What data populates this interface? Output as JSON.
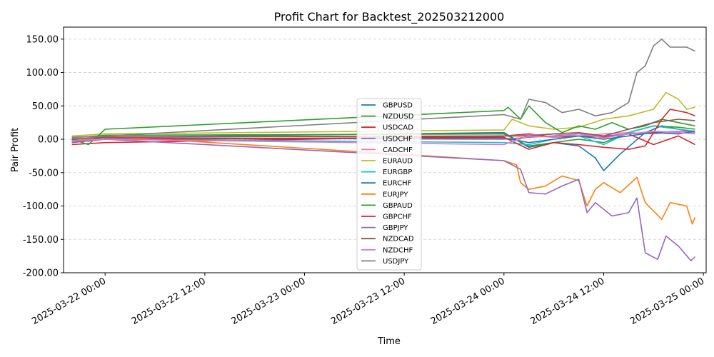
{
  "chart_data": {
    "type": "line",
    "title": "Profit Chart for Backtest_202503212000",
    "xlabel": "Time",
    "ylabel": "Pair Profit",
    "grid": "y-dashed",
    "legend_position": "center",
    "x_axis": {
      "type": "datetime",
      "range": [
        "2025-03-21T19:00",
        "2025-03-25T00:20"
      ],
      "ticks": [
        "2025-03-22 00:00",
        "2025-03-22 12:00",
        "2025-03-23 00:00",
        "2025-03-23 12:00",
        "2025-03-24 00:00",
        "2025-03-24 12:00",
        "2025-03-25 00:00"
      ]
    },
    "y_axis": {
      "range": [
        -200,
        168
      ],
      "ticks": [
        -200,
        -150,
        -100,
        -50,
        0,
        50,
        100,
        150
      ],
      "tick_labels": [
        "-200.00",
        "-150.00",
        "-100.00",
        "-50.00",
        "0.00",
        "50.00",
        "100.00",
        "150.00"
      ]
    },
    "series": [
      {
        "name": "GBPUSD",
        "color": "#1f77b4",
        "points": [
          [
            "2025-03-21T20:00",
            0
          ],
          [
            "2025-03-21T22:00",
            -3
          ],
          [
            "2025-03-22T00:00",
            3
          ],
          [
            "2025-03-24T00:00",
            10
          ],
          [
            "2025-03-24T03:00",
            -12
          ],
          [
            "2025-03-24T06:00",
            -5
          ],
          [
            "2025-03-24T09:00",
            -10
          ],
          [
            "2025-03-24T11:00",
            -28
          ],
          [
            "2025-03-24T12:00",
            -47
          ],
          [
            "2025-03-24T14:00",
            -22
          ],
          [
            "2025-03-24T17:00",
            10
          ],
          [
            "2025-03-24T19:00",
            20
          ],
          [
            "2025-03-24T21:00",
            15
          ],
          [
            "2025-03-24T23:00",
            10
          ]
        ]
      },
      {
        "name": "NZDUSD",
        "color": "#2ca02c",
        "points": [
          [
            "2025-03-21T20:00",
            2
          ],
          [
            "2025-03-22T00:00",
            6
          ],
          [
            "2025-03-24T00:00",
            8
          ],
          [
            "2025-03-24T03:00",
            -10
          ],
          [
            "2025-03-24T06:00",
            -5
          ],
          [
            "2025-03-24T09:00",
            0
          ],
          [
            "2025-03-24T12:00",
            -5
          ],
          [
            "2025-03-24T15:00",
            10
          ],
          [
            "2025-03-24T18:00",
            20
          ],
          [
            "2025-03-24T21:00",
            18
          ],
          [
            "2025-03-24T23:00",
            15
          ]
        ]
      },
      {
        "name": "USDCAD",
        "color": "#d62728",
        "points": [
          [
            "2025-03-21T20:00",
            -8
          ],
          [
            "2025-03-22T00:00",
            -5
          ],
          [
            "2025-03-24T00:00",
            5
          ],
          [
            "2025-03-24T03:00",
            8
          ],
          [
            "2025-03-24T06:00",
            3
          ],
          [
            "2025-03-24T09:00",
            5
          ],
          [
            "2025-03-24T12:00",
            3
          ],
          [
            "2025-03-24T15:00",
            8
          ],
          [
            "2025-03-24T18:00",
            -8
          ],
          [
            "2025-03-24T21:00",
            5
          ],
          [
            "2025-03-24T23:00",
            -8
          ]
        ]
      },
      {
        "name": "USDCHF",
        "color": "#9467bd",
        "points": [
          [
            "2025-03-21T20:00",
            0
          ],
          [
            "2025-03-22T00:00",
            2
          ],
          [
            "2025-03-24T00:00",
            0
          ],
          [
            "2025-03-24T03:00",
            3
          ],
          [
            "2025-03-24T06:00",
            5
          ],
          [
            "2025-03-24T09:00",
            8
          ],
          [
            "2025-03-24T12:00",
            5
          ],
          [
            "2025-03-24T15:00",
            8
          ],
          [
            "2025-03-24T18:00",
            10
          ],
          [
            "2025-03-24T21:00",
            12
          ],
          [
            "2025-03-24T23:00",
            10
          ]
        ]
      },
      {
        "name": "CADCHF",
        "color": "#e377c2",
        "points": [
          [
            "2025-03-21T20:00",
            3
          ],
          [
            "2025-03-22T00:00",
            4
          ],
          [
            "2025-03-24T00:00",
            5
          ],
          [
            "2025-03-24T03:00",
            6
          ],
          [
            "2025-03-24T06:00",
            8
          ],
          [
            "2025-03-24T09:00",
            5
          ],
          [
            "2025-03-24T12:00",
            8
          ],
          [
            "2025-03-24T15:00",
            10
          ],
          [
            "2025-03-24T18:00",
            8
          ],
          [
            "2025-03-24T21:00",
            12
          ],
          [
            "2025-03-24T23:00",
            10
          ]
        ]
      },
      {
        "name": "EURAUD",
        "color": "#bcbd22",
        "points": [
          [
            "2025-03-21T20:00",
            5
          ],
          [
            "2025-03-22T00:00",
            8
          ],
          [
            "2025-03-24T00:00",
            14
          ],
          [
            "2025-03-24T01:00",
            30
          ],
          [
            "2025-03-24T03:00",
            20
          ],
          [
            "2025-03-24T06:00",
            15
          ],
          [
            "2025-03-24T09:00",
            18
          ],
          [
            "2025-03-24T12:00",
            30
          ],
          [
            "2025-03-24T15:00",
            35
          ],
          [
            "2025-03-24T18:00",
            45
          ],
          [
            "2025-03-24T19:30",
            70
          ],
          [
            "2025-03-24T21:00",
            60
          ],
          [
            "2025-03-24T22:00",
            45
          ],
          [
            "2025-03-24T23:00",
            48
          ]
        ]
      },
      {
        "name": "EURGBP",
        "color": "#17becf",
        "points": [
          [
            "2025-03-21T20:00",
            -2
          ],
          [
            "2025-03-22T00:00",
            0
          ],
          [
            "2025-03-24T00:00",
            -5
          ],
          [
            "2025-03-24T03:00",
            -8
          ],
          [
            "2025-03-24T06:00",
            0
          ],
          [
            "2025-03-24T09:00",
            5
          ],
          [
            "2025-03-24T12:00",
            -8
          ],
          [
            "2025-03-24T15:00",
            10
          ],
          [
            "2025-03-24T18:00",
            20
          ],
          [
            "2025-03-24T21:00",
            15
          ],
          [
            "2025-03-24T23:00",
            12
          ]
        ]
      },
      {
        "name": "EURCHF",
        "color": "#1f77b4",
        "points": [
          [
            "2025-03-21T20:00",
            -3
          ],
          [
            "2025-03-22T00:00",
            0
          ],
          [
            "2025-03-24T00:00",
            2
          ],
          [
            "2025-03-24T03:00",
            -5
          ],
          [
            "2025-03-24T06:00",
            0
          ],
          [
            "2025-03-24T09:00",
            5
          ],
          [
            "2025-03-24T12:00",
            0
          ],
          [
            "2025-03-24T15:00",
            5
          ],
          [
            "2025-03-24T18:00",
            10
          ],
          [
            "2025-03-24T21:00",
            8
          ],
          [
            "2025-03-24T23:00",
            12
          ]
        ]
      },
      {
        "name": "EURJPY",
        "color": "#ff7f0e",
        "points": [
          [
            "2025-03-21T20:00",
            -3
          ],
          [
            "2025-03-22T00:00",
            5
          ],
          [
            "2025-03-24T00:00",
            -32
          ],
          [
            "2025-03-24T01:30",
            -38
          ],
          [
            "2025-03-24T02:00",
            -65
          ],
          [
            "2025-03-24T03:00",
            -75
          ],
          [
            "2025-03-24T05:00",
            -70
          ],
          [
            "2025-03-24T07:00",
            -55
          ],
          [
            "2025-03-24T09:00",
            -62
          ],
          [
            "2025-03-24T10:00",
            -100
          ],
          [
            "2025-03-24T11:00",
            -75
          ],
          [
            "2025-03-24T12:00",
            -65
          ],
          [
            "2025-03-24T14:00",
            -80
          ],
          [
            "2025-03-24T16:00",
            -57
          ],
          [
            "2025-03-24T17:00",
            -95
          ],
          [
            "2025-03-24T19:00",
            -120
          ],
          [
            "2025-03-24T20:00",
            -95
          ],
          [
            "2025-03-24T22:00",
            -100
          ],
          [
            "2025-03-24T22:40",
            -127
          ],
          [
            "2025-03-24T23:00",
            -117
          ]
        ]
      },
      {
        "name": "GBPAUD",
        "color": "#2ca02c",
        "points": [
          [
            "2025-03-21T20:00",
            0
          ],
          [
            "2025-03-21T22:00",
            -8
          ],
          [
            "2025-03-22T00:00",
            15
          ],
          [
            "2025-03-24T00:00",
            43
          ],
          [
            "2025-03-24T00:30",
            48
          ],
          [
            "2025-03-24T02:00",
            30
          ],
          [
            "2025-03-24T03:00",
            50
          ],
          [
            "2025-03-24T05:00",
            25
          ],
          [
            "2025-03-24T07:00",
            10
          ],
          [
            "2025-03-24T09:00",
            20
          ],
          [
            "2025-03-24T11:00",
            15
          ],
          [
            "2025-03-24T13:00",
            25
          ],
          [
            "2025-03-24T15:00",
            15
          ],
          [
            "2025-03-24T17:00",
            20
          ],
          [
            "2025-03-24T19:00",
            30
          ],
          [
            "2025-03-24T21:00",
            25
          ],
          [
            "2025-03-24T23:00",
            20
          ]
        ]
      },
      {
        "name": "GBPCHF",
        "color": "#d62728",
        "points": [
          [
            "2025-03-21T20:00",
            -5
          ],
          [
            "2025-03-22T00:00",
            0
          ],
          [
            "2025-03-24T00:00",
            3
          ],
          [
            "2025-03-24T03:00",
            -15
          ],
          [
            "2025-03-24T06:00",
            -5
          ],
          [
            "2025-03-24T09:00",
            -8
          ],
          [
            "2025-03-24T12:00",
            -12
          ],
          [
            "2025-03-24T15:00",
            -15
          ],
          [
            "2025-03-24T17:00",
            -10
          ],
          [
            "2025-03-24T19:00",
            30
          ],
          [
            "2025-03-24T20:00",
            45
          ],
          [
            "2025-03-24T22:00",
            40
          ],
          [
            "2025-03-24T23:00",
            35
          ]
        ]
      },
      {
        "name": "GBPJPY",
        "color": "#9467bd",
        "points": [
          [
            "2025-03-21T20:00",
            -5
          ],
          [
            "2025-03-22T00:00",
            0
          ],
          [
            "2025-03-24T00:00",
            -32
          ],
          [
            "2025-03-24T02:00",
            -45
          ],
          [
            "2025-03-24T03:00",
            -80
          ],
          [
            "2025-03-24T05:00",
            -82
          ],
          [
            "2025-03-24T07:00",
            -70
          ],
          [
            "2025-03-24T09:00",
            -60
          ],
          [
            "2025-03-24T10:00",
            -110
          ],
          [
            "2025-03-24T11:00",
            -95
          ],
          [
            "2025-03-24T13:00",
            -115
          ],
          [
            "2025-03-24T15:00",
            -110
          ],
          [
            "2025-03-24T16:00",
            -88
          ],
          [
            "2025-03-24T17:00",
            -170
          ],
          [
            "2025-03-24T18:30",
            -180
          ],
          [
            "2025-03-24T19:30",
            -145
          ],
          [
            "2025-03-24T21:00",
            -160
          ],
          [
            "2025-03-24T22:30",
            -182
          ],
          [
            "2025-03-24T23:00",
            -176
          ]
        ]
      },
      {
        "name": "NZDCAD",
        "color": "#8c564b",
        "points": [
          [
            "2025-03-21T20:00",
            0
          ],
          [
            "2025-03-22T00:00",
            3
          ],
          [
            "2025-03-24T00:00",
            5
          ],
          [
            "2025-03-24T03:00",
            5
          ],
          [
            "2025-03-24T06:00",
            8
          ],
          [
            "2025-03-24T09:00",
            10
          ],
          [
            "2025-03-24T12:00",
            5
          ],
          [
            "2025-03-24T15:00",
            15
          ],
          [
            "2025-03-24T18:00",
            25
          ],
          [
            "2025-03-24T21:00",
            30
          ],
          [
            "2025-03-24T23:00",
            28
          ]
        ]
      },
      {
        "name": "NZDCHF",
        "color": "#e377c2",
        "points": [
          [
            "2025-03-21T20:00",
            -2
          ],
          [
            "2025-03-22T00:00",
            0
          ],
          [
            "2025-03-24T00:00",
            -8
          ],
          [
            "2025-03-24T03:00",
            5
          ],
          [
            "2025-03-24T06:00",
            3
          ],
          [
            "2025-03-24T09:00",
            8
          ],
          [
            "2025-03-24T12:00",
            2
          ],
          [
            "2025-03-24T15:00",
            8
          ],
          [
            "2025-03-24T18:00",
            12
          ],
          [
            "2025-03-24T21:00",
            10
          ],
          [
            "2025-03-24T23:00",
            8
          ]
        ]
      },
      {
        "name": "USDJPY",
        "color": "#7f7f7f",
        "points": [
          [
            "2025-03-21T20:00",
            3
          ],
          [
            "2025-03-22T00:00",
            5
          ],
          [
            "2025-03-24T00:00",
            37
          ],
          [
            "2025-03-24T02:00",
            30
          ],
          [
            "2025-03-24T03:00",
            60
          ],
          [
            "2025-03-24T05:00",
            55
          ],
          [
            "2025-03-24T07:00",
            40
          ],
          [
            "2025-03-24T09:00",
            45
          ],
          [
            "2025-03-24T11:00",
            35
          ],
          [
            "2025-03-24T13:00",
            40
          ],
          [
            "2025-03-24T15:00",
            55
          ],
          [
            "2025-03-24T16:00",
            100
          ],
          [
            "2025-03-24T17:00",
            110
          ],
          [
            "2025-03-24T18:00",
            140
          ],
          [
            "2025-03-24T19:00",
            150
          ],
          [
            "2025-03-24T20:00",
            138
          ],
          [
            "2025-03-24T22:00",
            138
          ],
          [
            "2025-03-24T23:00",
            132
          ]
        ]
      }
    ]
  }
}
